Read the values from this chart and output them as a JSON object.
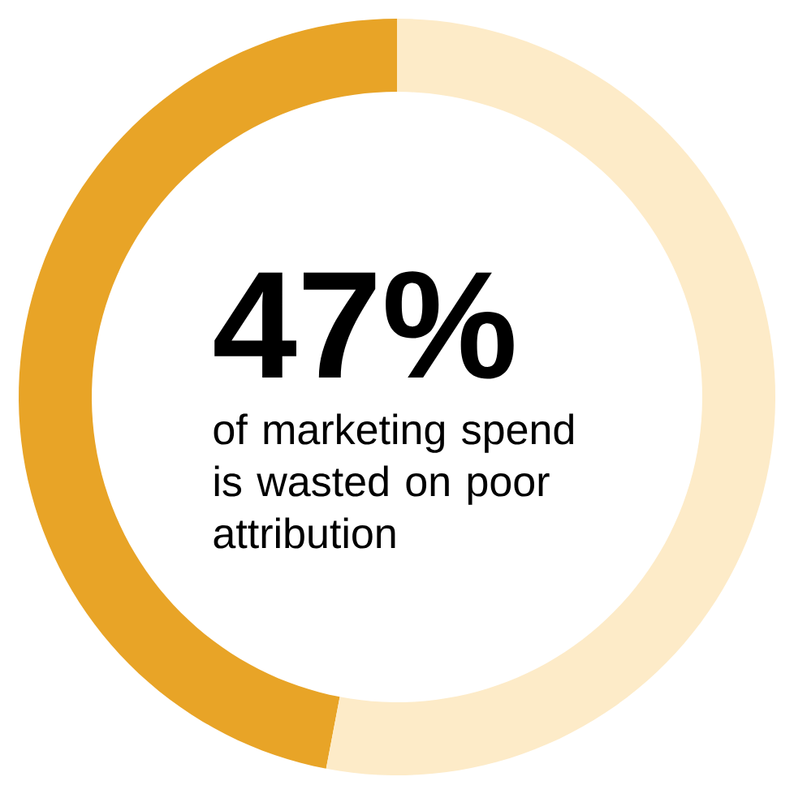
{
  "chart_data": {
    "type": "donut",
    "title": "47%",
    "subtitle": "of marketing spend is wasted on poor attribution",
    "categories": [
      null,
      null
    ],
    "values": [
      47,
      53
    ],
    "colors": [
      "#e8a427",
      "#fdebc8"
    ]
  }
}
